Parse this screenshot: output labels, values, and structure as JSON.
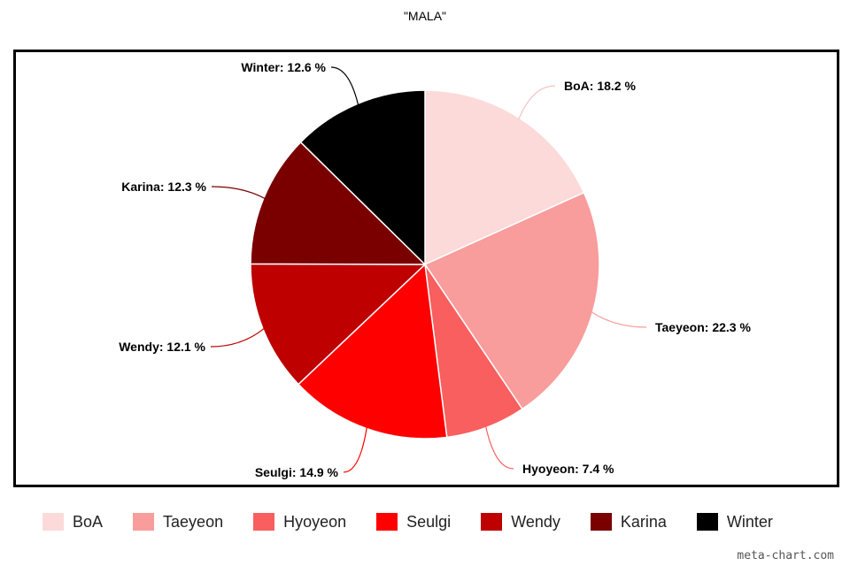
{
  "chart_data": {
    "type": "pie",
    "title": "\"MALA\"",
    "slices": [
      {
        "name": "BoA",
        "value": 18.2,
        "label": "BoA: 18.2 %",
        "color": "#FCDADA"
      },
      {
        "name": "Taeyeon",
        "value": 22.3,
        "label": "Taeyeon: 22.3 %",
        "color": "#F99C9C"
      },
      {
        "name": "Hyoyeon",
        "value": 7.4,
        "label": "Hyoyeon: 7.4 %",
        "color": "#F95F5F"
      },
      {
        "name": "Seulgi",
        "value": 14.9,
        "label": "Seulgi: 14.9 %",
        "color": "#FF0000"
      },
      {
        "name": "Wendy",
        "value": 12.1,
        "label": "Wendy: 12.1 %",
        "color": "#BE0000"
      },
      {
        "name": "Karina",
        "value": 12.3,
        "label": "Karina: 12.3 %",
        "color": "#7A0000"
      },
      {
        "name": "Winter",
        "value": 12.6,
        "label": "Winter: 12.6 %",
        "color": "#000000"
      }
    ],
    "legend": "bottom",
    "start": "12 o'clock",
    "direction": "clockwise"
  },
  "watermark": "meta-chart.com"
}
